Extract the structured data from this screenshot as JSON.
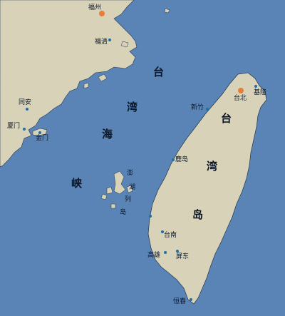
{
  "colors": {
    "sea": "#5a84b6",
    "land": "#d8d2b8",
    "coast": "#1f3550",
    "city_dot": "#1f6fa6",
    "major_city_dot": "#e67e3a"
  },
  "strait_label": [
    "台",
    "湾",
    "海",
    "峡"
  ],
  "island_label": [
    "台",
    "湾",
    "岛"
  ],
  "penghu_label": [
    "澎",
    "湖",
    "列",
    "岛"
  ],
  "cities": {
    "fuzhou": "福州",
    "fuqing": "福清",
    "tongan": "同安",
    "xiamen": "厦门",
    "jinmen": "金门",
    "taibei": "台北",
    "jilong": "基隆",
    "xinzhu": "新竹",
    "lugang": "鹿岛",
    "tainan": "台南",
    "gaoxiong": "高雄",
    "pingdong": "屏东",
    "hengchun": "恒春"
  }
}
